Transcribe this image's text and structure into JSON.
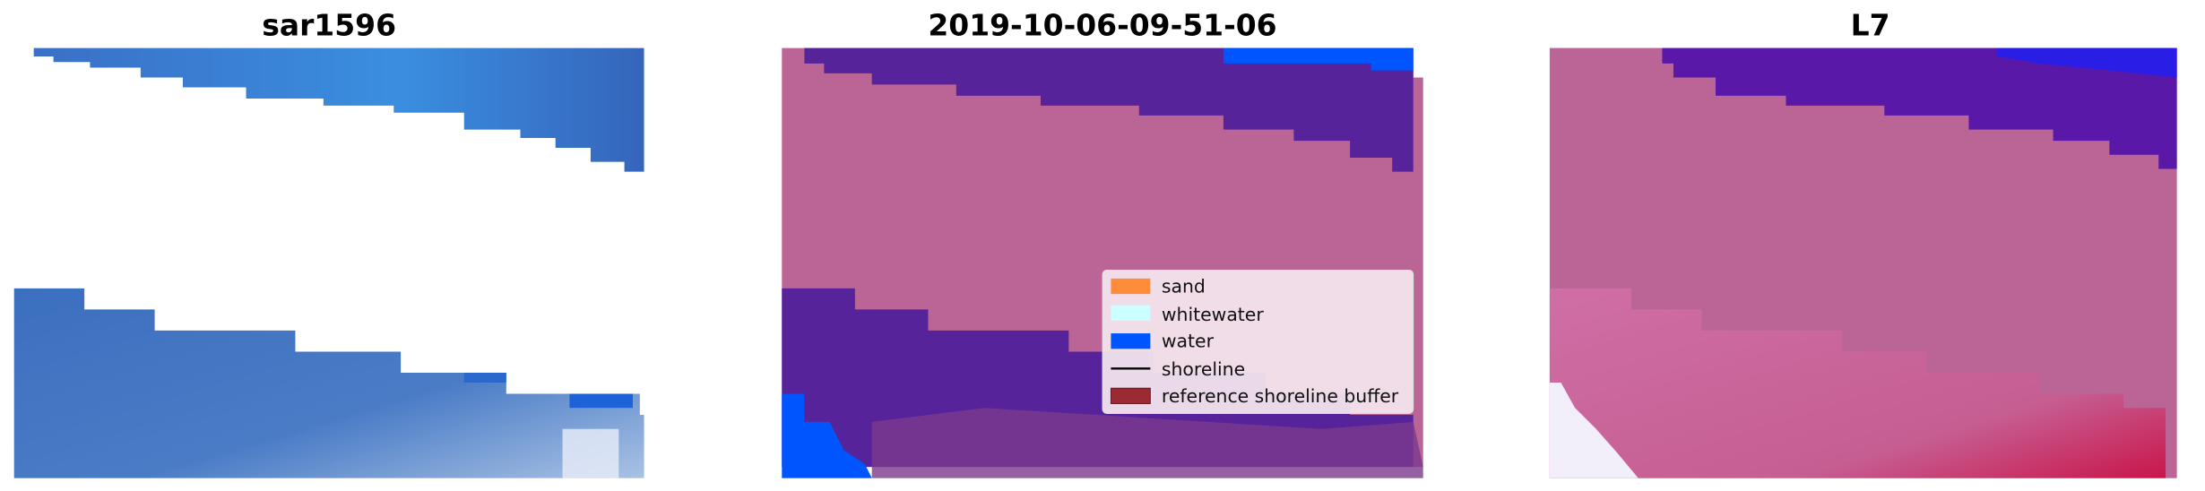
{
  "panels": [
    {
      "title": "sar1596"
    },
    {
      "title": "2019-10-06-09-51-06"
    },
    {
      "title": "L7"
    }
  ],
  "legend": {
    "items": [
      {
        "label": "sand",
        "color": "#ff8c3a",
        "kind": "patch"
      },
      {
        "label": "whitewater",
        "color": "#ccffff",
        "kind": "patch"
      },
      {
        "label": "water",
        "color": "#0055ff",
        "kind": "patch"
      },
      {
        "label": "shoreline",
        "color": "#000000",
        "kind": "line"
      },
      {
        "label": "reference shoreline buffer",
        "color": "#9b2a35",
        "kind": "patch"
      }
    ]
  },
  "colors": {
    "water_rgb": "#3a72c4",
    "sand_overlay": "#bb6596",
    "water_class_overlay": "#56239b",
    "whitewater_class": "#ccffff"
  }
}
